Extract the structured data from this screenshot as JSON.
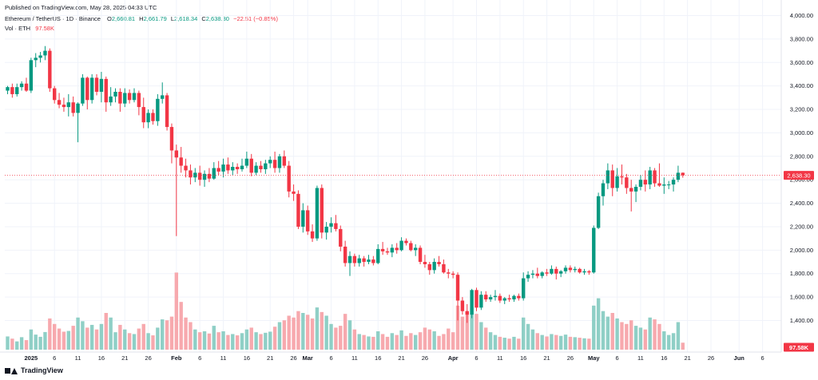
{
  "published": "Published on TradingView.com, May 28, 2025 04:33 UTC",
  "header": {
    "symbol": "Ethereum / TetherUS · 1D · Binance",
    "ohlc": {
      "o_label": "O",
      "o": "2,660.81",
      "h_label": "H",
      "h": "2,661.79",
      "l_label": "L",
      "l": "2,618.34",
      "c_label": "C",
      "c": "2,638.30",
      "change": "−22.51 (−0.85%)"
    },
    "vol_label": "Vol · ETH",
    "vol_value": "97.58K"
  },
  "brand": "TradingView",
  "colors": {
    "up": "#089981",
    "down": "#f23645",
    "vol_up": "#8fcfc6",
    "vol_down": "#f7a9ae",
    "grid": "#f0f3fa"
  },
  "chart_data": {
    "type": "candlestick",
    "title": "Ethereum / TetherUS · 1D · Binance",
    "y_axis": {
      "ticks": [
        "4,000.00",
        "3,800.00",
        "3,600.00",
        "3,400.00",
        "3,200.00",
        "3,000.00",
        "2,800.00",
        "2,600.00",
        "2,400.00",
        "2,200.00",
        "2,000.00",
        "1,800.00",
        "1,600.00",
        "1,400.00"
      ],
      "range": [
        1230,
        4000
      ]
    },
    "last_price_label": "2,638.30",
    "last_volume_label": "97.58K",
    "x_axis": {
      "ticks": [
        {
          "label": "2025",
          "day": 5,
          "bold": true
        },
        {
          "label": "6",
          "day": 10
        },
        {
          "label": "11",
          "day": 15
        },
        {
          "label": "16",
          "day": 20
        },
        {
          "label": "21",
          "day": 25
        },
        {
          "label": "26",
          "day": 30
        },
        {
          "label": "Feb",
          "day": 36,
          "bold": true
        },
        {
          "label": "6",
          "day": 41
        },
        {
          "label": "11",
          "day": 46
        },
        {
          "label": "16",
          "day": 51
        },
        {
          "label": "21",
          "day": 56
        },
        {
          "label": "26",
          "day": 61
        },
        {
          "label": "Mar",
          "day": 64,
          "bold": true
        },
        {
          "label": "6",
          "day": 69
        },
        {
          "label": "11",
          "day": 74
        },
        {
          "label": "16",
          "day": 79
        },
        {
          "label": "21",
          "day": 84
        },
        {
          "label": "26",
          "day": 89
        },
        {
          "label": "Apr",
          "day": 95,
          "bold": true
        },
        {
          "label": "6",
          "day": 100
        },
        {
          "label": "11",
          "day": 105
        },
        {
          "label": "16",
          "day": 110
        },
        {
          "label": "21",
          "day": 115
        },
        {
          "label": "26",
          "day": 120
        },
        {
          "label": "May",
          "day": 125,
          "bold": true
        },
        {
          "label": "6",
          "day": 130
        },
        {
          "label": "11",
          "day": 135
        },
        {
          "label": "16",
          "day": 140
        },
        {
          "label": "21",
          "day": 145
        },
        {
          "label": "26",
          "day": 150
        },
        {
          "label": "Jun",
          "day": 156,
          "bold": true
        },
        {
          "label": "6",
          "day": 161
        }
      ]
    },
    "candles": [
      [
        3360,
        3400,
        3330,
        3390,
        72
      ],
      [
        3390,
        3420,
        3300,
        3330,
        60
      ],
      [
        3330,
        3420,
        3310,
        3390,
        45
      ],
      [
        3390,
        3440,
        3360,
        3420,
        68
      ],
      [
        3420,
        3470,
        3350,
        3360,
        52
      ],
      [
        3360,
        3640,
        3340,
        3620,
        110
      ],
      [
        3620,
        3680,
        3560,
        3640,
        82
      ],
      [
        3640,
        3690,
        3600,
        3660,
        70
      ],
      [
        3660,
        3740,
        3620,
        3700,
        96
      ],
      [
        3700,
        3720,
        3350,
        3380,
        170
      ],
      [
        3380,
        3400,
        3250,
        3280,
        140
      ],
      [
        3280,
        3340,
        3210,
        3240,
        115
      ],
      [
        3240,
        3300,
        3180,
        3220,
        98
      ],
      [
        3220,
        3330,
        3140,
        3260,
        102
      ],
      [
        3260,
        3310,
        3140,
        3170,
        130
      ],
      [
        3170,
        3260,
        2920,
        3250,
        175
      ],
      [
        3250,
        3500,
        3230,
        3470,
        155
      ],
      [
        3470,
        3480,
        3200,
        3280,
        120
      ],
      [
        3280,
        3500,
        3250,
        3470,
        135
      ],
      [
        3470,
        3500,
        3320,
        3350,
        110
      ],
      [
        3350,
        3520,
        3260,
        3460,
        140
      ],
      [
        3460,
        3480,
        3180,
        3260,
        200
      ],
      [
        3260,
        3390,
        3230,
        3310,
        175
      ],
      [
        3310,
        3380,
        3260,
        3350,
        95
      ],
      [
        3350,
        3380,
        3180,
        3250,
        135
      ],
      [
        3250,
        3380,
        3220,
        3340,
        110
      ],
      [
        3340,
        3370,
        3250,
        3280,
        90
      ],
      [
        3280,
        3380,
        3260,
        3340,
        85
      ],
      [
        3340,
        3360,
        3150,
        3220,
        115
      ],
      [
        3220,
        3300,
        3040,
        3090,
        140
      ],
      [
        3090,
        3200,
        3040,
        3170,
        90
      ],
      [
        3170,
        3200,
        3070,
        3100,
        78
      ],
      [
        3100,
        3330,
        3060,
        3290,
        120
      ],
      [
        3290,
        3430,
        3250,
        3320,
        165
      ],
      [
        3320,
        3340,
        3020,
        3050,
        160
      ],
      [
        3050,
        3080,
        2740,
        2850,
        180
      ],
      [
        2850,
        2900,
        2120,
        2790,
        420
      ],
      [
        2790,
        2880,
        2660,
        2720,
        260
      ],
      [
        2720,
        2780,
        2620,
        2680,
        175
      ],
      [
        2680,
        2730,
        2560,
        2620,
        150
      ],
      [
        2620,
        2700,
        2580,
        2660,
        110
      ],
      [
        2660,
        2720,
        2550,
        2600,
        95
      ],
      [
        2600,
        2680,
        2540,
        2650,
        100
      ],
      [
        2650,
        2700,
        2580,
        2610,
        88
      ],
      [
        2610,
        2750,
        2600,
        2700,
        130
      ],
      [
        2700,
        2760,
        2640,
        2670,
        95
      ],
      [
        2670,
        2780,
        2620,
        2730,
        100
      ],
      [
        2730,
        2790,
        2650,
        2680,
        80
      ],
      [
        2680,
        2750,
        2640,
        2710,
        85
      ],
      [
        2710,
        2740,
        2650,
        2690,
        78
      ],
      [
        2690,
        2780,
        2670,
        2720,
        90
      ],
      [
        2720,
        2840,
        2700,
        2780,
        110
      ],
      [
        2780,
        2820,
        2630,
        2660,
        120
      ],
      [
        2660,
        2750,
        2640,
        2720,
        95
      ],
      [
        2720,
        2760,
        2660,
        2690,
        85
      ],
      [
        2690,
        2770,
        2650,
        2740,
        92
      ],
      [
        2740,
        2800,
        2700,
        2770,
        98
      ],
      [
        2770,
        2840,
        2660,
        2700,
        125
      ],
      [
        2700,
        2820,
        2660,
        2800,
        150
      ],
      [
        2800,
        2850,
        2700,
        2720,
        160
      ],
      [
        2720,
        2760,
        2450,
        2500,
        185
      ],
      [
        2500,
        2560,
        2420,
        2480,
        175
      ],
      [
        2480,
        2510,
        2180,
        2200,
        210
      ],
      [
        2200,
        2400,
        2150,
        2340,
        200
      ],
      [
        2340,
        2380,
        2130,
        2160,
        190
      ],
      [
        2160,
        2220,
        2070,
        2100,
        170
      ],
      [
        2100,
        2550,
        2080,
        2530,
        230
      ],
      [
        2530,
        2560,
        2100,
        2150,
        205
      ],
      [
        2150,
        2240,
        2090,
        2200,
        185
      ],
      [
        2200,
        2280,
        2150,
        2230,
        140
      ],
      [
        2230,
        2300,
        2160,
        2180,
        120
      ],
      [
        2180,
        2210,
        1990,
        2030,
        130
      ],
      [
        2030,
        2080,
        1860,
        1890,
        195
      ],
      [
        1890,
        1990,
        1780,
        1950,
        160
      ],
      [
        1950,
        1970,
        1860,
        1890,
        110
      ],
      [
        1890,
        1960,
        1860,
        1930,
        85
      ],
      [
        1930,
        1950,
        1860,
        1900,
        80
      ],
      [
        1900,
        1960,
        1880,
        1920,
        72
      ],
      [
        1920,
        1950,
        1870,
        1890,
        70
      ],
      [
        1890,
        2050,
        1880,
        2010,
        100
      ],
      [
        2010,
        2070,
        1960,
        1990,
        85
      ],
      [
        1990,
        2020,
        1960,
        1980,
        70
      ],
      [
        1980,
        2050,
        1940,
        2020,
        90
      ],
      [
        2020,
        2060,
        1970,
        2000,
        80
      ],
      [
        2000,
        2110,
        1990,
        2080,
        105
      ],
      [
        2080,
        2100,
        2040,
        2060,
        75
      ],
      [
        2060,
        2080,
        1990,
        2000,
        90
      ],
      [
        2000,
        2050,
        1950,
        2020,
        80
      ],
      [
        2020,
        2040,
        1880,
        1900,
        95
      ],
      [
        1900,
        1960,
        1850,
        1880,
        120
      ],
      [
        1880,
        1900,
        1790,
        1830,
        110
      ],
      [
        1830,
        1930,
        1800,
        1900,
        100
      ],
      [
        1900,
        1950,
        1860,
        1880,
        75
      ],
      [
        1880,
        1920,
        1800,
        1810,
        85
      ],
      [
        1810,
        1840,
        1760,
        1800,
        115
      ],
      [
        1800,
        1820,
        1760,
        1790,
        95
      ],
      [
        1790,
        1810,
        1400,
        1570,
        240
      ],
      [
        1570,
        1600,
        1450,
        1480,
        180
      ],
      [
        1480,
        1540,
        1380,
        1450,
        210
      ],
      [
        1450,
        1670,
        1420,
        1660,
        230
      ],
      [
        1660,
        1680,
        1480,
        1510,
        195
      ],
      [
        1510,
        1650,
        1490,
        1620,
        150
      ],
      [
        1620,
        1650,
        1560,
        1580,
        120
      ],
      [
        1580,
        1620,
        1560,
        1600,
        95
      ],
      [
        1600,
        1660,
        1570,
        1610,
        80
      ],
      [
        1610,
        1630,
        1550,
        1570,
        70
      ],
      [
        1570,
        1600,
        1540,
        1590,
        65
      ],
      [
        1590,
        1620,
        1560,
        1580,
        60
      ],
      [
        1580,
        1620,
        1560,
        1610,
        70
      ],
      [
        1610,
        1630,
        1570,
        1590,
        60
      ],
      [
        1590,
        1810,
        1570,
        1760,
        175
      ],
      [
        1760,
        1820,
        1730,
        1790,
        140
      ],
      [
        1790,
        1830,
        1760,
        1800,
        110
      ],
      [
        1800,
        1850,
        1760,
        1780,
        90
      ],
      [
        1780,
        1820,
        1760,
        1810,
        80
      ],
      [
        1810,
        1840,
        1780,
        1800,
        72
      ],
      [
        1800,
        1870,
        1790,
        1840,
        85
      ],
      [
        1840,
        1860,
        1750,
        1800,
        80
      ],
      [
        1800,
        1830,
        1770,
        1820,
        75
      ],
      [
        1820,
        1870,
        1800,
        1850,
        82
      ],
      [
        1850,
        1870,
        1810,
        1830,
        70
      ],
      [
        1830,
        1860,
        1810,
        1840,
        68
      ],
      [
        1840,
        1850,
        1800,
        1810,
        65
      ],
      [
        1810,
        1840,
        1790,
        1820,
        62
      ],
      [
        1820,
        1830,
        1790,
        1810,
        60
      ],
      [
        1810,
        2210,
        1800,
        2190,
        240
      ],
      [
        2190,
        2490,
        2180,
        2460,
        280
      ],
      [
        2460,
        2600,
        2380,
        2570,
        210
      ],
      [
        2570,
        2740,
        2520,
        2680,
        180
      ],
      [
        2680,
        2730,
        2460,
        2530,
        200
      ],
      [
        2530,
        2700,
        2500,
        2630,
        170
      ],
      [
        2630,
        2730,
        2560,
        2620,
        150
      ],
      [
        2620,
        2650,
        2480,
        2530,
        140
      ],
      [
        2530,
        2600,
        2330,
        2500,
        160
      ],
      [
        2500,
        2560,
        2410,
        2540,
        130
      ],
      [
        2540,
        2640,
        2510,
        2600,
        120
      ],
      [
        2600,
        2680,
        2500,
        2560,
        110
      ],
      [
        2560,
        2710,
        2520,
        2680,
        175
      ],
      [
        2680,
        2700,
        2540,
        2570,
        165
      ],
      [
        2570,
        2740,
        2540,
        2550,
        140
      ],
      [
        2550,
        2620,
        2480,
        2560,
        100
      ],
      [
        2560,
        2590,
        2520,
        2560,
        80
      ],
      [
        2560,
        2620,
        2500,
        2600,
        90
      ],
      [
        2600,
        2720,
        2580,
        2660,
        150
      ],
      [
        2660,
        2662,
        2618,
        2638,
        38
      ]
    ]
  }
}
